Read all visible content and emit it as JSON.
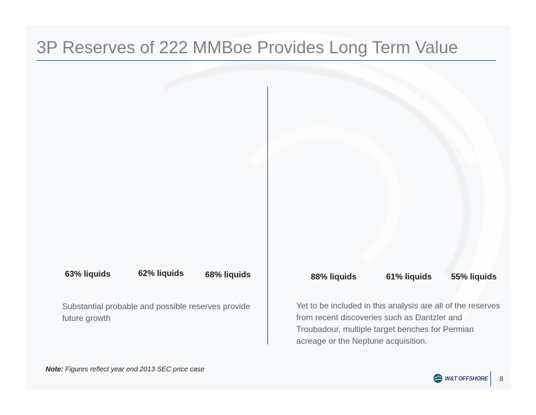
{
  "slide": {
    "title": "3P Reserves of 222 MMBoe Provides Long Term Value",
    "left_panel": {
      "liquids": [
        "63% liquids",
        "62% liquids",
        "68% liquids"
      ],
      "caption": "Substantial probable and possible reserves provide future growth"
    },
    "right_panel": {
      "liquids": [
        "88% liquids",
        "61% liquids",
        "55% liquids"
      ],
      "caption": "Yet to be included in this analysis are all of the reserves from recent discoveries such as Dantzler and Troubadour, multiple target benches for Permian acreage or the Neptune acquisition."
    },
    "note": {
      "label": "Note:",
      "text": "Figures reflect year end 2013 SEC price case"
    },
    "logo_text": "W&T OFFSHORE",
    "page_number": "8",
    "colors": {
      "accent": "#2f5f9a",
      "title": "#7d7f82",
      "background": "#f7f8f9"
    }
  }
}
